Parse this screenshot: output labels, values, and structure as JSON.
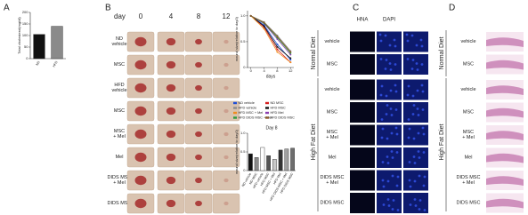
{
  "figure": {
    "panel_a": {
      "letter": "A"
    },
    "panel_b": {
      "letter": "B",
      "day_label": "day",
      "days": [
        "0",
        "4",
        "8",
        "12"
      ],
      "rows": [
        [
          "ND",
          "vehicle"
        ],
        [
          "MSC"
        ],
        [
          "HFD",
          "vehicle"
        ],
        [
          "MSC"
        ],
        [
          "MSC",
          "+ Mel"
        ],
        [
          "Mel"
        ],
        [
          "DIDS MSC",
          "+ Mel"
        ],
        [
          "DIDS MSC"
        ]
      ]
    },
    "panel_c": {
      "letter": "C",
      "columns": [
        "HNA",
        "DAPI"
      ],
      "groups": [
        "Normal Diet",
        "High Fat Diet"
      ],
      "rows": [
        [
          "vehicle"
        ],
        [
          "MSC"
        ],
        [
          "vehicle"
        ],
        [
          "MSC"
        ],
        [
          "MSC",
          "+ Mel"
        ],
        [
          "Mel"
        ],
        [
          "DIDS MSC",
          "+ Mel"
        ],
        [
          "DIDS MSC"
        ]
      ]
    },
    "panel_d": {
      "letter": "D",
      "groups": [
        "Normal Diet",
        "High Fat Diet"
      ],
      "rows": [
        [
          "vehicle"
        ],
        [
          "MSC"
        ],
        [
          "vehicle"
        ],
        [
          "MSC"
        ],
        [
          "MSC",
          "+ Mel"
        ],
        [
          "Mel"
        ],
        [
          "DIDS MSC",
          "+ Mel"
        ],
        [
          "DIDS MSC"
        ]
      ]
    }
  },
  "chart_data": [
    {
      "type": "bar",
      "ylabel": "Total cholesterol(mg/dl)",
      "categories": [
        "ND",
        "HFD"
      ],
      "values": [
        105,
        140
      ],
      "colors": [
        "#111111",
        "#8a8a8a"
      ],
      "ylim": [
        0,
        200
      ],
      "yticks": [
        0,
        50,
        100,
        150,
        200
      ]
    },
    {
      "type": "line",
      "xlabel": "days",
      "ylabel": "wound size(relative to day0)",
      "x": [
        0,
        4,
        8,
        12
      ],
      "xlim": [
        -1,
        13
      ],
      "xticks": [
        0,
        4,
        8,
        12
      ],
      "ylim": [
        0,
        1.1
      ],
      "yticks": [
        0,
        0.5,
        {
          "value": 1,
          "label": "1.0"
        }
      ],
      "series": [
        {
          "name": "ND vehicle",
          "color": "#1f4fd8",
          "values": [
            1,
            0.82,
            0.45,
            0.15
          ]
        },
        {
          "name": "ND MSC",
          "color": "#d62020",
          "values": [
            1,
            0.78,
            0.35,
            0.1
          ]
        },
        {
          "name": "HFD vehicle",
          "color": "#8c8c8c",
          "values": [
            1,
            0.88,
            0.62,
            0.32
          ]
        },
        {
          "name": "HFD MSC",
          "color": "#111111",
          "values": [
            1,
            0.8,
            0.4,
            0.18
          ]
        },
        {
          "name": "HFD MSC + Mel",
          "color": "#f08c1e",
          "values": [
            1,
            0.75,
            0.3,
            0.1
          ]
        },
        {
          "name": "HFD Mel",
          "color": "#8a3fb0",
          "values": [
            1,
            0.85,
            0.55,
            0.25
          ]
        },
        {
          "name": "HFD DIDS MSC + Mel",
          "color": "#2a9a3a",
          "values": [
            1,
            0.86,
            0.58,
            0.28
          ]
        },
        {
          "name": "HFD DIDS MSC",
          "color": "#8b5a2b",
          "values": [
            1,
            0.87,
            0.6,
            0.3
          ]
        }
      ]
    },
    {
      "type": "bar",
      "title": "Day 8",
      "ylabel": "wound size(relative to day0)",
      "categories": [
        "ND vehicle",
        "ND MSC",
        "HFD vehicle",
        "HFD MSC",
        "HFD MSC + Mel",
        "HFD Mel",
        "HFD DIDS MSC + Mel",
        "HFD DIDS MSC"
      ],
      "values": [
        0.45,
        0.35,
        0.62,
        0.4,
        0.3,
        0.55,
        0.58,
        0.6
      ],
      "colors": [
        "#111111",
        "#8a8a8a",
        "#ffffff",
        "#555555",
        "#c8c8c8",
        "#333333",
        "#a0a0a0",
        "#6e6e6e"
      ],
      "ylim": [
        0,
        1
      ],
      "yticks": [
        0,
        0.5,
        {
          "value": 1,
          "label": "1.0"
        }
      ]
    }
  ]
}
